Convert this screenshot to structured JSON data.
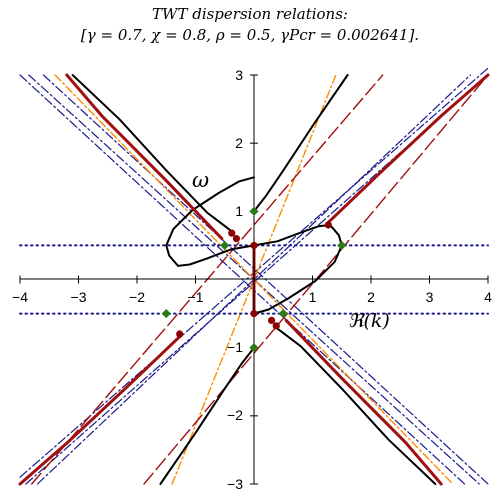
{
  "chart_data": {
    "type": "line",
    "title": "TWT dispersion relations:",
    "subtitle": "[γ = 0.7, χ = 0.8, ρ = 0.5, γPcr = 0.002641].",
    "xlim": [
      -4,
      4
    ],
    "ylim": [
      -3,
      3
    ],
    "x_ticks": [
      "−4",
      "−3",
      "−2",
      "−1",
      "1",
      "2",
      "3",
      "4"
    ],
    "y_ticks": [
      "3",
      "2",
      "1",
      "−1",
      "−2",
      "−3"
    ],
    "grid": false,
    "annotations": [
      {
        "text": "ω",
        "x": -0.9,
        "y": 1.38
      },
      {
        "text": "ℜ(k)",
        "x": 1.95,
        "y": -0.7
      }
    ],
    "colors": {
      "black_curve": "#000000",
      "red_curve": "#a01010",
      "red_dash": "#a01010",
      "orange_dash": "#ff8c00",
      "blue_dash": "#1a1a8c",
      "dotted_line": "#1a1a8c",
      "red_marker": "#8b0000",
      "green_marker": "#2a7a1a"
    },
    "series": [
      {
        "style": "black_curve",
        "points": [
          [
            0,
            0.5
          ],
          [
            0.4,
            0.56
          ],
          [
            0.8,
            0.69
          ],
          [
            1.1,
            0.78
          ],
          [
            1.3,
            0.8
          ],
          [
            1.45,
            0.65
          ],
          [
            1.5,
            0.5
          ],
          [
            1.38,
            0.26
          ],
          [
            1.05,
            -0.02
          ],
          [
            0.6,
            -0.27
          ],
          [
            0.25,
            -0.44
          ],
          [
            0,
            -0.5
          ]
        ]
      },
      {
        "style": "black_curve",
        "points": [
          [
            0,
            0.5
          ],
          [
            -0.4,
            0.44
          ],
          [
            -0.8,
            0.31
          ],
          [
            -1.1,
            0.22
          ],
          [
            -1.3,
            0.2
          ],
          [
            -1.45,
            0.35
          ],
          [
            -1.5,
            0.5
          ],
          [
            -1.38,
            0.74
          ],
          [
            -1.05,
            1.02
          ],
          [
            -0.6,
            1.27
          ],
          [
            -0.25,
            1.44
          ],
          [
            0,
            1.5
          ]
        ]
      },
      {
        "style": "black_curve",
        "points": [
          [
            0,
            1
          ],
          [
            0.2,
            1.22
          ],
          [
            0.5,
            1.6
          ],
          [
            1,
            2.25
          ],
          [
            1.6,
            3
          ]
        ]
      },
      {
        "style": "black_curve",
        "points": [
          [
            -0.4,
            0.72
          ],
          [
            -0.8,
            0.98
          ],
          [
            -1.5,
            1.6
          ],
          [
            -2.3,
            2.35
          ],
          [
            -3.1,
            3
          ]
        ]
      },
      {
        "style": "black_curve",
        "points": [
          [
            0,
            -1
          ],
          [
            -0.2,
            -1.22
          ],
          [
            -0.5,
            -1.6
          ],
          [
            -1,
            -2.25
          ],
          [
            -1.6,
            -3
          ]
        ]
      },
      {
        "style": "black_curve",
        "points": [
          [
            0.4,
            -0.72
          ],
          [
            0.8,
            -0.98
          ],
          [
            1.5,
            -1.6
          ],
          [
            2.3,
            -2.35
          ],
          [
            3.1,
            -3
          ]
        ]
      },
      {
        "style": "red_curve",
        "points": [
          [
            -0.55,
            0.6
          ],
          [
            -1.5,
            1.45
          ],
          [
            -2.6,
            2.4
          ],
          [
            -3.2,
            3
          ]
        ]
      },
      {
        "style": "red_curve",
        "points": [
          [
            1.25,
            0.82
          ],
          [
            2.2,
            1.6
          ],
          [
            3.2,
            2.4
          ],
          [
            4,
            3
          ]
        ]
      },
      {
        "style": "red_curve",
        "points": [
          [
            -1.25,
            -0.82
          ],
          [
            -2.2,
            -1.6
          ],
          [
            -3.2,
            -2.4
          ],
          [
            -4,
            -3
          ]
        ]
      },
      {
        "style": "red_curve",
        "points": [
          [
            0.55,
            -0.6
          ],
          [
            1.5,
            -1.45
          ],
          [
            2.6,
            -2.4
          ],
          [
            3.2,
            -3
          ]
        ]
      },
      {
        "style": "red_curve",
        "points": [
          [
            0,
            0.5
          ],
          [
            0,
            -0.5
          ]
        ]
      },
      {
        "style": "red_dash",
        "points": [
          [
            -1.88,
            -3
          ],
          [
            4,
            3
          ]
        ]
      },
      {
        "style": "red_dash",
        "points": [
          [
            -3.8,
            -3
          ],
          [
            2.2,
            3
          ]
        ]
      },
      {
        "style": "orange_dash",
        "points": [
          [
            -1.4,
            -3
          ],
          [
            1.4,
            3
          ]
        ]
      },
      {
        "style": "orange_dash",
        "points": [
          [
            -3.4,
            3
          ],
          [
            3.4,
            -3
          ]
        ]
      },
      {
        "style": "blue_dash",
        "points": [
          [
            -3.85,
            3
          ],
          [
            3.85,
            -3
          ]
        ]
      },
      {
        "style": "blue_dash",
        "points": [
          [
            -3.6,
            3
          ],
          [
            4,
            -3
          ]
        ]
      },
      {
        "style": "blue_dash",
        "points": [
          [
            -4,
            3
          ],
          [
            3.6,
            -3
          ]
        ]
      },
      {
        "style": "blue_dash",
        "points": [
          [
            -3.9,
            -3
          ],
          [
            4,
            3
          ]
        ]
      },
      {
        "style": "blue_dash",
        "points": [
          [
            -3.7,
            -3
          ],
          [
            3.7,
            3
          ]
        ]
      },
      {
        "style": "blue_dash",
        "points": [
          [
            -4,
            -2.9
          ],
          [
            4,
            3.1
          ]
        ]
      },
      {
        "style": "dotted_line",
        "points": [
          [
            -4,
            0.5
          ],
          [
            4,
            0.5
          ]
        ]
      },
      {
        "style": "dotted_line",
        "points": [
          [
            -4,
            -0.5
          ],
          [
            4,
            -0.5
          ]
        ]
      }
    ],
    "markers": [
      {
        "style": "red_marker",
        "x": 0,
        "y": 0.5
      },
      {
        "style": "red_marker",
        "x": 0,
        "y": -0.5
      },
      {
        "style": "red_marker",
        "x": -0.38,
        "y": 0.68
      },
      {
        "style": "red_marker",
        "x": -0.3,
        "y": 0.6
      },
      {
        "style": "red_marker",
        "x": 0.38,
        "y": -0.68
      },
      {
        "style": "red_marker",
        "x": 0.3,
        "y": -0.6
      },
      {
        "style": "red_marker",
        "x": 1.27,
        "y": 0.8
      },
      {
        "style": "red_marker",
        "x": -1.27,
        "y": -0.8
      },
      {
        "style": "green_marker",
        "x": 0,
        "y": 1
      },
      {
        "style": "green_marker",
        "x": 0,
        "y": -1
      },
      {
        "style": "green_marker",
        "x": -0.5,
        "y": 0.5
      },
      {
        "style": "green_marker",
        "x": 0.5,
        "y": -0.5
      },
      {
        "style": "green_marker",
        "x": 1.5,
        "y": 0.5
      },
      {
        "style": "green_marker",
        "x": -1.5,
        "y": -0.5
      }
    ]
  }
}
